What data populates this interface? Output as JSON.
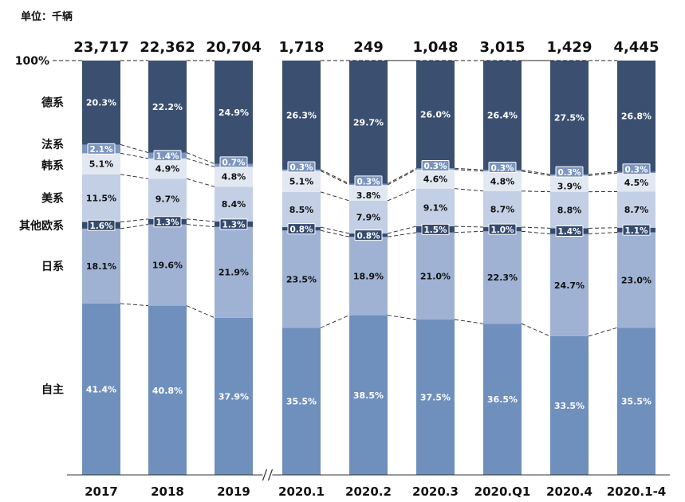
{
  "unit_label": "单位：千辆",
  "chart_data": {
    "type": "stacked-bar-100",
    "title": "",
    "top_label": "100%",
    "categories": [
      "2017",
      "2018",
      "2019",
      "2020.1",
      "2020.2",
      "2020.3",
      "2020.Q1",
      "2020.4",
      "2020.1-4"
    ],
    "totals": [
      "23,717",
      "22,362",
      "20,704",
      "1,718",
      "249",
      "1,048",
      "3,015",
      "1,429",
      "4,445"
    ],
    "axis_break_after": "2019",
    "series": [
      {
        "name": "自主",
        "color": "#6f8fbd",
        "label_color": "#ffffff",
        "values": [
          41.4,
          40.8,
          37.9,
          35.5,
          38.5,
          37.5,
          36.5,
          33.5,
          35.5
        ]
      },
      {
        "name": "日系",
        "color": "#9fb2d3",
        "label_color": "#111111",
        "values": [
          18.1,
          19.6,
          21.9,
          23.5,
          18.9,
          21.0,
          22.3,
          24.7,
          23.0
        ]
      },
      {
        "name": "其他欧系",
        "color": "#344a6e",
        "label_color": "#ffffff",
        "values": [
          1.6,
          1.3,
          1.3,
          0.8,
          0.8,
          1.5,
          1.0,
          1.4,
          1.1
        ]
      },
      {
        "name": "美系",
        "color": "#c3cfe4",
        "label_color": "#111111",
        "values": [
          11.5,
          9.7,
          8.4,
          8.5,
          7.9,
          9.1,
          8.7,
          8.8,
          8.7
        ]
      },
      {
        "name": "韩系",
        "color": "#e2e8f2",
        "label_color": "#111111",
        "values": [
          5.1,
          4.9,
          4.8,
          5.1,
          3.8,
          4.6,
          4.8,
          3.9,
          4.5
        ]
      },
      {
        "name": "法系",
        "color": "#7b95c0",
        "label_color": "#ffffff",
        "values": [
          2.1,
          1.4,
          0.7,
          0.3,
          0.3,
          0.3,
          0.3,
          0.3,
          0.3
        ]
      },
      {
        "name": "德系",
        "color": "#3b4f70",
        "label_color": "#ffffff",
        "values": [
          20.3,
          22.2,
          24.9,
          26.3,
          29.7,
          26.0,
          26.4,
          27.5,
          26.8
        ]
      }
    ]
  }
}
